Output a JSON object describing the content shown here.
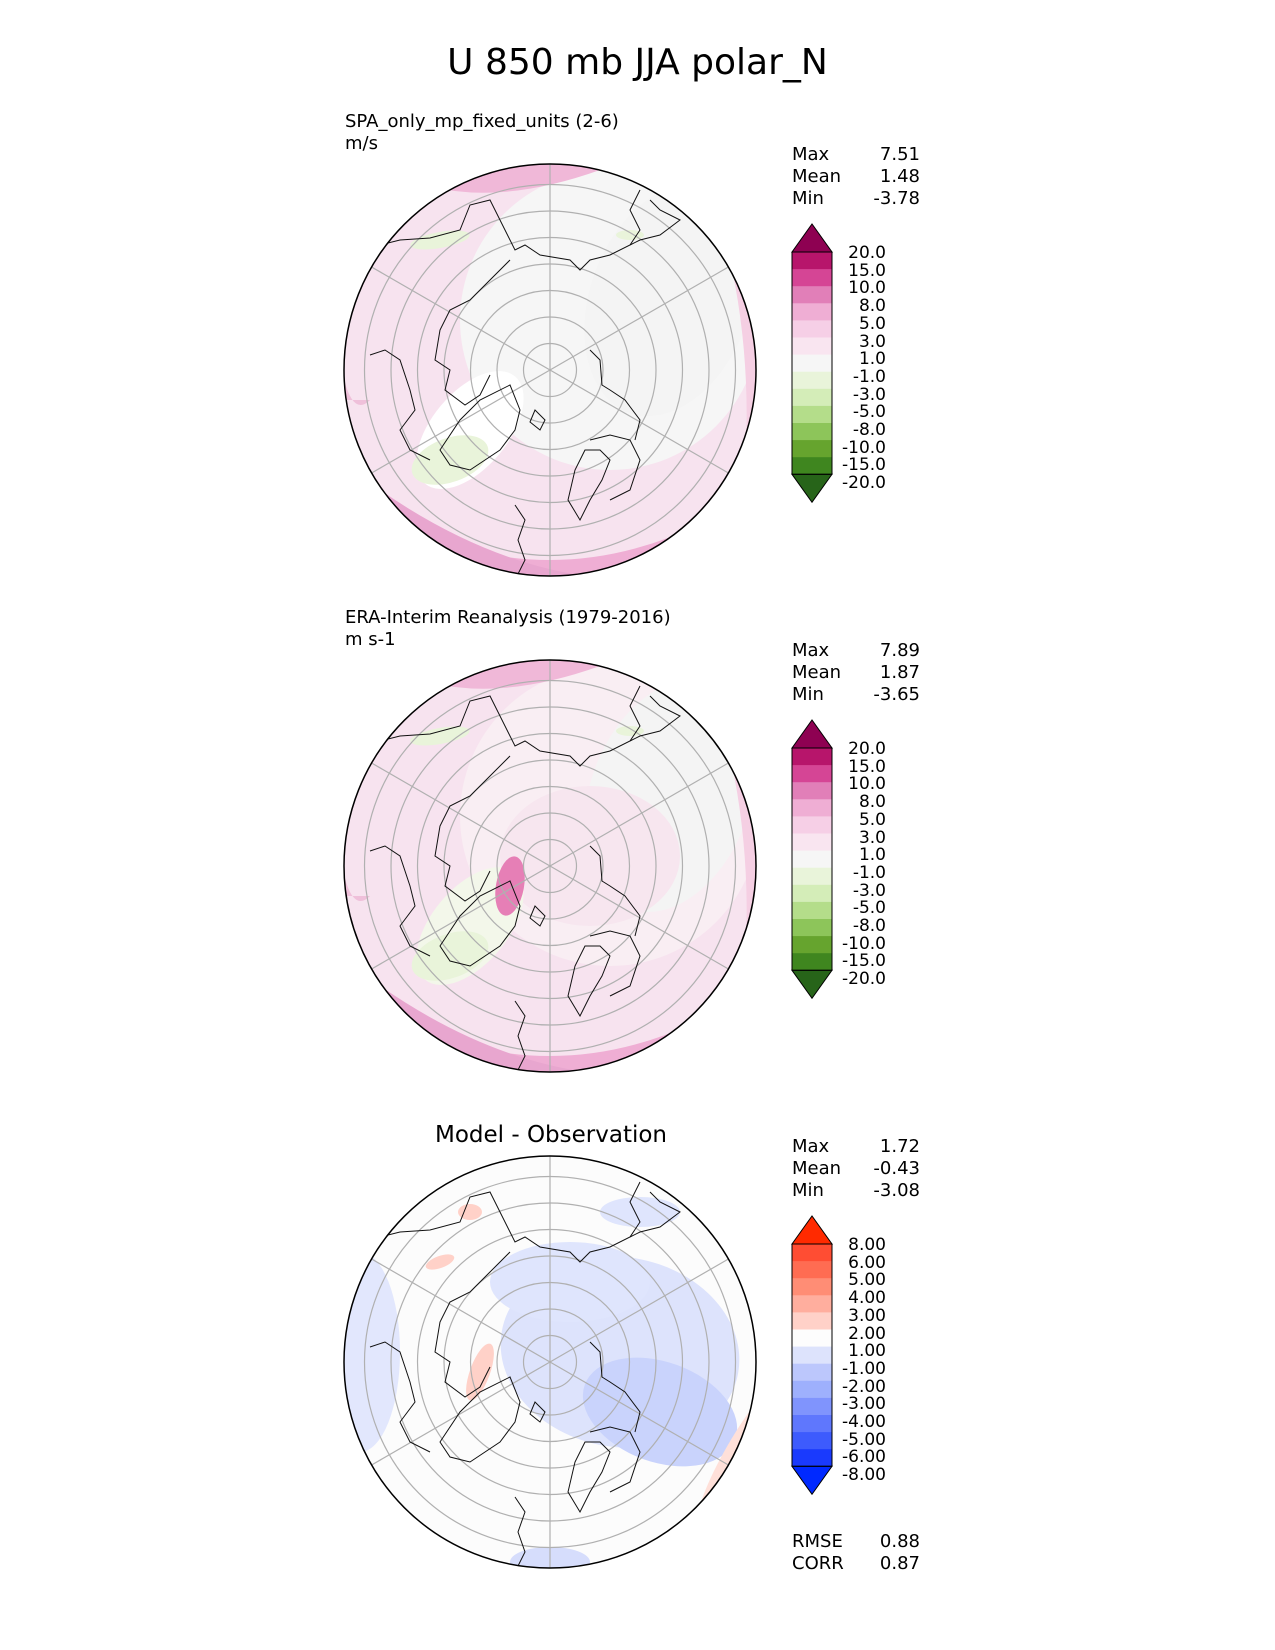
{
  "title": "U 850 mb JJA polar_N",
  "panels": [
    {
      "id": "model",
      "title_line1": "SPA_only_mp_fixed_units (2-6)",
      "title_line2": "m/s",
      "stats": {
        "max_label": "Max",
        "max": "7.51",
        "mean_label": "Mean",
        "mean": "1.48",
        "min_label": "Min",
        "min": "-3.78"
      },
      "colorbar_labels": [
        "20.0",
        "15.0",
        "10.0",
        "8.0",
        "5.0",
        "3.0",
        "1.0",
        "-1.0",
        "-3.0",
        "-5.0",
        "-8.0",
        "-10.0",
        "-15.0",
        "-20.0"
      ]
    },
    {
      "id": "obs",
      "title_line1": "ERA-Interim Reanalysis (1979-2016)",
      "title_line2": "m s-1",
      "stats": {
        "max_label": "Max",
        "max": "7.89",
        "mean_label": "Mean",
        "mean": "1.87",
        "min_label": "Min",
        "min": "-3.65"
      },
      "colorbar_labels": [
        "20.0",
        "15.0",
        "10.0",
        "8.0",
        "5.0",
        "3.0",
        "1.0",
        "-1.0",
        "-3.0",
        "-5.0",
        "-8.0",
        "-10.0",
        "-15.0",
        "-20.0"
      ]
    },
    {
      "id": "diff",
      "title_center": "Model - Observation",
      "stats": {
        "max_label": "Max",
        "max": "1.72",
        "mean_label": "Mean",
        "mean": "-0.43",
        "min_label": "Min",
        "min": "-3.08"
      },
      "colorbar_labels": [
        "8.00",
        "6.00",
        "5.00",
        "4.00",
        "3.00",
        "2.00",
        "1.00",
        "-1.00",
        "-2.00",
        "-3.00",
        "-4.00",
        "-5.00",
        "-6.00",
        "-8.00"
      ],
      "error_stats": {
        "rmse_label": "RMSE",
        "rmse": "0.88",
        "corr_label": "CORR",
        "corr": "0.87"
      }
    }
  ],
  "colors": {
    "piyg": [
      "#8e0152",
      "#b7156b",
      "#d54595",
      "#e17fb8",
      "#efaed4",
      "#f6cfe6",
      "#f9e5f0",
      "#f6f6f6",
      "#e9f4da",
      "#d4edb8",
      "#b4dd8a",
      "#8dc55a",
      "#66a42e",
      "#3f861f",
      "#276419"
    ],
    "bwr": [
      "#ff2a00",
      "#ff4d33",
      "#ff6c52",
      "#ff8d75",
      "#ffae9e",
      "#ffd1c8",
      "#fdfdfd",
      "#dde3fc",
      "#bcc7fc",
      "#9eb0fd",
      "#8094fd",
      "#5f77fd",
      "#3d5bfd",
      "#1a3afd",
      "#0029ff"
    ]
  }
}
